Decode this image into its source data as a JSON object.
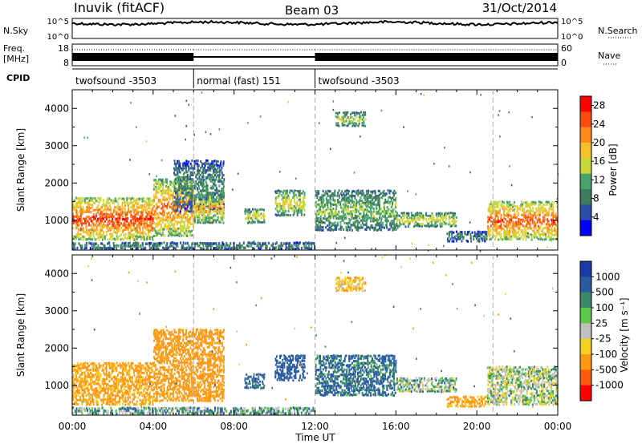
{
  "header": {
    "station": "Inuvik (fitACF)",
    "beam": "Beam 03",
    "date": "31/Oct/2014"
  },
  "side_labels": {
    "nsky": "N.Sky",
    "freq_line1": "Freq.",
    "freq_line2": "[MHz]",
    "cpid": "CPID",
    "nsearch": "N.Search",
    "nave": "Nave"
  },
  "noise_panel": {
    "left_ticks": [
      "10^5",
      "10^0"
    ],
    "right_ticks": [
      "10^5",
      "10^0"
    ]
  },
  "freq_panel": {
    "left_ticks": [
      "18",
      "8"
    ],
    "right_ticks": [
      "60",
      "0"
    ]
  },
  "cpid_segments": [
    {
      "label": "twofsound -3503",
      "start_hour": 0,
      "end_hour": 6
    },
    {
      "label": "normal (fast) 151",
      "start_hour": 6,
      "end_hour": 12
    },
    {
      "label": "twofsound -3503",
      "start_hour": 12,
      "end_hour": 24
    }
  ],
  "colors": {
    "power_scale": [
      "#0000ff",
      "#2a4fa8",
      "#3e7a5e",
      "#4aa36b",
      "#c8d83a",
      "#f5c12b",
      "#ff8c1a",
      "#ff4a10",
      "#ff0000"
    ],
    "velocity_scale": [
      "#1a3aa8",
      "#2a5aa0",
      "#3a8a6a",
      "#5cc84a",
      "#bfbfbf",
      "#f5d020",
      "#ff9a10",
      "#ff5a10",
      "#ff0000"
    ]
  },
  "chart_data": [
    {
      "type": "heatmap",
      "name": "power",
      "xlabel": "Time UT",
      "ylabel": "Slant Range [km]",
      "x_ticks": [
        "00:00",
        "04:00",
        "08:00",
        "12:00",
        "16:00",
        "20:00",
        "00:00"
      ],
      "xlim_hours": [
        0,
        24
      ],
      "y_ticks": [
        1000,
        2000,
        3000,
        4000
      ],
      "ylim": [
        200,
        4500
      ],
      "colorbar_label": "Power [dB]",
      "colorbar_ticks": [
        "4",
        "8",
        "12",
        "16",
        "20",
        "24",
        "28"
      ],
      "colorbar_range": [
        0,
        30
      ],
      "mode_boundaries_hours": [
        6,
        12,
        20.8
      ],
      "echo_regions": [
        {
          "t0": 0.0,
          "t1": 4.0,
          "r0": 450,
          "r1": 1600,
          "p": 27
        },
        {
          "t0": 4.0,
          "t1": 6.0,
          "r0": 550,
          "r1": 2100,
          "p": 24
        },
        {
          "t0": 5.0,
          "t1": 7.5,
          "r0": 1200,
          "r1": 2600,
          "p": 10
        },
        {
          "t0": 6.0,
          "t1": 7.5,
          "r0": 900,
          "r1": 1700,
          "p": 20
        },
        {
          "t0": 8.5,
          "t1": 9.5,
          "r0": 900,
          "r1": 1300,
          "p": 18
        },
        {
          "t0": 10.0,
          "t1": 11.5,
          "r0": 1100,
          "r1": 1800,
          "p": 18
        },
        {
          "t0": 12.0,
          "t1": 16.0,
          "r0": 700,
          "r1": 1800,
          "p": 14
        },
        {
          "t0": 13.0,
          "t1": 14.5,
          "r0": 3500,
          "r1": 3900,
          "p": 16
        },
        {
          "t0": 16.0,
          "t1": 19.0,
          "r0": 800,
          "r1": 1200,
          "p": 18
        },
        {
          "t0": 18.5,
          "t1": 20.5,
          "r0": 400,
          "r1": 700,
          "p": 10
        },
        {
          "t0": 20.5,
          "t1": 24.0,
          "r0": 450,
          "r1": 1500,
          "p": 26
        },
        {
          "t0": 0.0,
          "t1": 12.0,
          "r0": 200,
          "r1": 400,
          "p": 12
        }
      ]
    },
    {
      "type": "heatmap",
      "name": "velocity",
      "xlabel": "Time UT",
      "ylabel": "Slant Range [km]",
      "x_ticks": [
        "00:00",
        "04:00",
        "08:00",
        "12:00",
        "16:00",
        "20:00",
        "00:00"
      ],
      "xlim_hours": [
        0,
        24
      ],
      "y_ticks": [
        1000,
        2000,
        3000,
        4000
      ],
      "ylim": [
        200,
        4500
      ],
      "colorbar_label": "Velocity [m s⁻¹]",
      "colorbar_ticks": [
        "1000",
        "500",
        "100",
        "25",
        "-25",
        "-100",
        "-500",
        "-1000"
      ],
      "colorbar_range": [
        -1000,
        1000
      ],
      "mode_boundaries_hours": [
        6,
        12,
        20.8
      ],
      "echo_regions": [
        {
          "t0": 0.0,
          "t1": 4.0,
          "r0": 450,
          "r1": 1600,
          "v": -150
        },
        {
          "t0": 4.0,
          "t1": 7.5,
          "r0": 550,
          "r1": 2500,
          "v": -200
        },
        {
          "t0": 8.5,
          "t1": 9.5,
          "r0": 900,
          "r1": 1300,
          "v": 150
        },
        {
          "t0": 10.0,
          "t1": 11.5,
          "r0": 1100,
          "r1": 1800,
          "v": 200
        },
        {
          "t0": 12.0,
          "t1": 16.0,
          "r0": 700,
          "r1": 1800,
          "v": 120
        },
        {
          "t0": 13.0,
          "t1": 14.5,
          "r0": 3500,
          "r1": 3900,
          "v": -80
        },
        {
          "t0": 16.0,
          "t1": 19.0,
          "r0": 800,
          "r1": 1200,
          "v": 30
        },
        {
          "t0": 18.5,
          "t1": 20.5,
          "r0": 400,
          "r1": 700,
          "v": -150
        },
        {
          "t0": 20.5,
          "t1": 24.0,
          "r0": 450,
          "r1": 1500,
          "v": 10
        },
        {
          "t0": 0.0,
          "t1": 12.0,
          "r0": 200,
          "r1": 400,
          "v": 60
        }
      ]
    }
  ]
}
